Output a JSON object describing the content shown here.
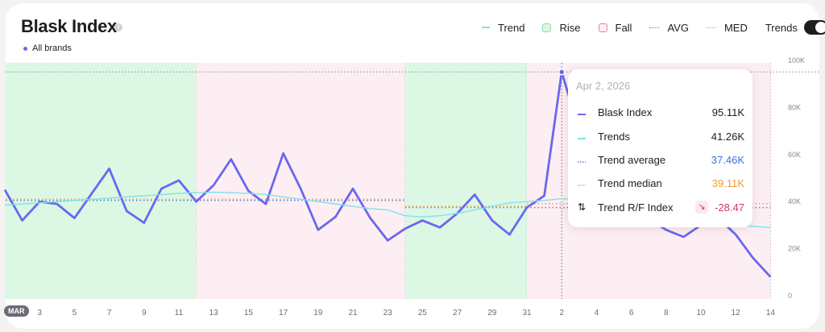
{
  "header": {
    "title": "Blask Index",
    "info_icon": "info-icon",
    "brand_filter": "All brands"
  },
  "legend": {
    "items": [
      {
        "label": "Trend",
        "type": "line",
        "color": "#7fe3e6"
      },
      {
        "label": "Rise",
        "type": "box",
        "color": "#8fd9a4",
        "fill": "#dcf7e4"
      },
      {
        "label": "Fall",
        "type": "box",
        "color": "#ef7fa6",
        "fill": "#fdeef3"
      },
      {
        "label": "AVG",
        "type": "dotted",
        "color": "#5b7de6"
      },
      {
        "label": "MED",
        "type": "dotted",
        "color": "#f5a54a"
      }
    ],
    "toggle_label": "Trends",
    "toggle_on": true
  },
  "tooltip": {
    "date": "Apr 2, 2026",
    "rows": [
      {
        "label": "Blask Index",
        "value": "95.11K",
        "color": "#1d1d1f",
        "marker": "#6b67ee"
      },
      {
        "label": "Trends",
        "value": "41.26K",
        "color": "#1d1d1f",
        "marker": "#7fe3e6"
      },
      {
        "label": "Trend average",
        "value": "37.46K",
        "color": "#3a6fe6",
        "marker": "#5b7de6"
      },
      {
        "label": "Trend median",
        "value": "39.11K",
        "color": "#f29a38",
        "marker": "#f5a54a"
      },
      {
        "label": "Trend R/F Index",
        "value": "-28.47",
        "color": "#d6336c",
        "marker": "arrows-up-down-icon",
        "badge": "↘"
      }
    ]
  },
  "x_axis": {
    "month_badge": "MAR",
    "labels": [
      "3",
      "5",
      "7",
      "9",
      "11",
      "13",
      "15",
      "17",
      "19",
      "21",
      "23",
      "25",
      "27",
      "29",
      "31",
      "2",
      "4",
      "6",
      "8",
      "10",
      "12",
      "14"
    ]
  },
  "y_axis": {
    "labels": [
      "100K",
      "80K",
      "60K",
      "40K",
      "20K",
      "0"
    ]
  },
  "chart_data": {
    "type": "line",
    "title": "Blask Index",
    "subtitle": "All brands",
    "xlabel": "",
    "ylabel": "",
    "ylim": [
      0,
      100000
    ],
    "x": [
      "Mar 1",
      "Mar 2",
      "Mar 3",
      "Mar 4",
      "Mar 5",
      "Mar 6",
      "Mar 7",
      "Mar 8",
      "Mar 9",
      "Mar 10",
      "Mar 11",
      "Mar 12",
      "Mar 13",
      "Mar 14",
      "Mar 15",
      "Mar 16",
      "Mar 17",
      "Mar 18",
      "Mar 19",
      "Mar 20",
      "Mar 21",
      "Mar 22",
      "Mar 23",
      "Mar 24",
      "Mar 25",
      "Mar 26",
      "Mar 27",
      "Mar 28",
      "Mar 29",
      "Mar 30",
      "Mar 31",
      "Apr 1",
      "Apr 2",
      "Apr 3",
      "Apr 4",
      "Apr 5",
      "Apr 6",
      "Apr 7",
      "Apr 8",
      "Apr 9",
      "Apr 10",
      "Apr 11",
      "Apr 12",
      "Apr 13",
      "Apr 14"
    ],
    "series": [
      {
        "name": "Blask Index",
        "color": "#6b67ee",
        "values": [
          45000,
          32000,
          40000,
          39000,
          33000,
          43500,
          54000,
          36000,
          31000,
          45500,
          49000,
          40000,
          47000,
          58000,
          44500,
          39000,
          60500,
          45500,
          28000,
          33500,
          45500,
          33000,
          23500,
          28500,
          32000,
          29000,
          35000,
          43000,
          32000,
          26000,
          37500,
          42500,
          95110,
          70000,
          55000,
          45000,
          38000,
          32500,
          28000,
          25000,
          30000,
          33000,
          26000,
          16000,
          8000
        ]
      },
      {
        "name": "Trends",
        "color": "#7fe3e6",
        "values": [
          38500,
          39000,
          39500,
          40000,
          40500,
          41000,
          41500,
          42000,
          42500,
          43000,
          43500,
          43800,
          44000,
          43800,
          43500,
          43000,
          42000,
          41000,
          40000,
          39000,
          38000,
          37000,
          36500,
          34000,
          33500,
          34000,
          35000,
          36500,
          38000,
          39500,
          40000,
          40500,
          41260,
          41000,
          40000,
          38000,
          36000,
          34000,
          32500,
          31500,
          31000,
          30500,
          30000,
          29500,
          29000
        ]
      },
      {
        "name": "Trend average",
        "color": "#5b7de6",
        "style": "dotted",
        "segments": [
          {
            "from": "Mar 1",
            "to": "Mar 12",
            "value": 40500
          },
          {
            "from": "Mar 12",
            "to": "Mar 24",
            "value": 40500
          },
          {
            "from": "Mar 24",
            "to": "Mar 31",
            "value": 37500
          },
          {
            "from": "Mar 31",
            "to": "Apr 14",
            "value": 37460
          }
        ]
      },
      {
        "name": "Trend median",
        "color": "#f5a54a",
        "style": "dotted",
        "segments": [
          {
            "from": "Mar 1",
            "to": "Mar 12",
            "value": 41000
          },
          {
            "from": "Mar 12",
            "to": "Mar 24",
            "value": 41000
          },
          {
            "from": "Mar 24",
            "to": "Mar 31",
            "value": 38000
          },
          {
            "from": "Mar 31",
            "to": "Apr 14",
            "value": 39110
          }
        ]
      }
    ],
    "regions": [
      {
        "type": "Rise",
        "from": "Mar 1",
        "to": "Mar 12"
      },
      {
        "type": "Fall",
        "from": "Mar 12",
        "to": "Mar 24"
      },
      {
        "type": "Rise",
        "from": "Mar 24",
        "to": "Mar 31"
      },
      {
        "type": "Fall",
        "from": "Mar 31",
        "to": "Apr 14"
      }
    ],
    "annotations": [
      {
        "type": "max-line",
        "value": 95110,
        "at": "Apr 2"
      }
    ],
    "grid": false,
    "legend_position": "top-right"
  }
}
